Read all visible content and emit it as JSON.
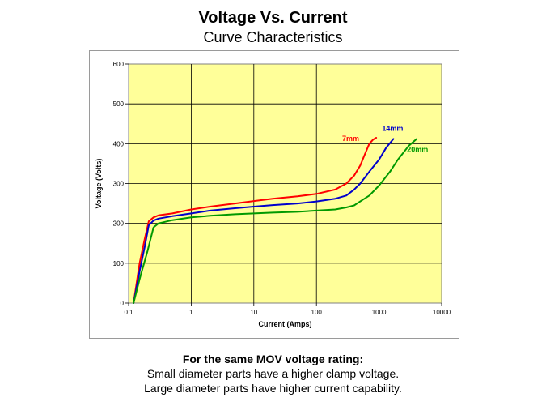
{
  "slide": {
    "title": "Voltage Vs. Current",
    "subtitle": "Curve Characteristics",
    "footer": {
      "heading": "For the same MOV voltage rating:",
      "line1": "Small diameter parts have a higher clamp voltage.",
      "line2": "Large diameter parts have higher current capability."
    }
  },
  "colors": {
    "plot_background": "#ffff99",
    "grid": "#000000",
    "red": "#ff0000",
    "blue": "#0000cc",
    "green": "#009900"
  },
  "chart_data": {
    "type": "line",
    "title": "",
    "xlabel": "Current (Amps)",
    "ylabel": "Voltage (Volts)",
    "x_scale": "log",
    "xlim": [
      0.1,
      10000
    ],
    "ylim": [
      0,
      600
    ],
    "x_ticks": [
      "0.1",
      "1",
      "10",
      "100",
      "1000",
      "10000"
    ],
    "y_ticks": [
      "0",
      "100",
      "200",
      "300",
      "400",
      "500",
      "600"
    ],
    "grid": true,
    "series": [
      {
        "name": "7mm",
        "color": "#ff0000",
        "x": [
          0.12,
          0.15,
          0.18,
          0.21,
          0.25,
          0.3,
          0.5,
          1,
          2,
          5,
          10,
          20,
          50,
          100,
          200,
          300,
          400,
          500,
          600,
          700,
          800,
          900
        ],
        "y": [
          0,
          100,
          160,
          205,
          215,
          220,
          225,
          235,
          242,
          250,
          256,
          262,
          268,
          274,
          285,
          300,
          320,
          345,
          375,
          400,
          410,
          415
        ]
      },
      {
        "name": "14mm",
        "color": "#0000cc",
        "x": [
          0.12,
          0.15,
          0.18,
          0.21,
          0.25,
          0.3,
          0.5,
          1,
          2,
          5,
          10,
          20,
          50,
          100,
          200,
          300,
          400,
          500,
          700,
          1000,
          1300,
          1700
        ],
        "y": [
          0,
          80,
          140,
          195,
          207,
          212,
          218,
          225,
          232,
          238,
          242,
          246,
          250,
          255,
          262,
          270,
          285,
          300,
          330,
          360,
          390,
          412
        ]
      },
      {
        "name": "20mm",
        "color": "#009900",
        "x": [
          0.12,
          0.15,
          0.2,
          0.25,
          0.3,
          0.5,
          1,
          2,
          5,
          10,
          20,
          50,
          100,
          200,
          300,
          400,
          500,
          700,
          1000,
          1500,
          2000,
          3000,
          4000
        ],
        "y": [
          0,
          60,
          130,
          190,
          200,
          208,
          215,
          219,
          223,
          225,
          227,
          229,
          232,
          235,
          240,
          245,
          255,
          270,
          295,
          330,
          360,
          395,
          412
        ]
      }
    ]
  }
}
